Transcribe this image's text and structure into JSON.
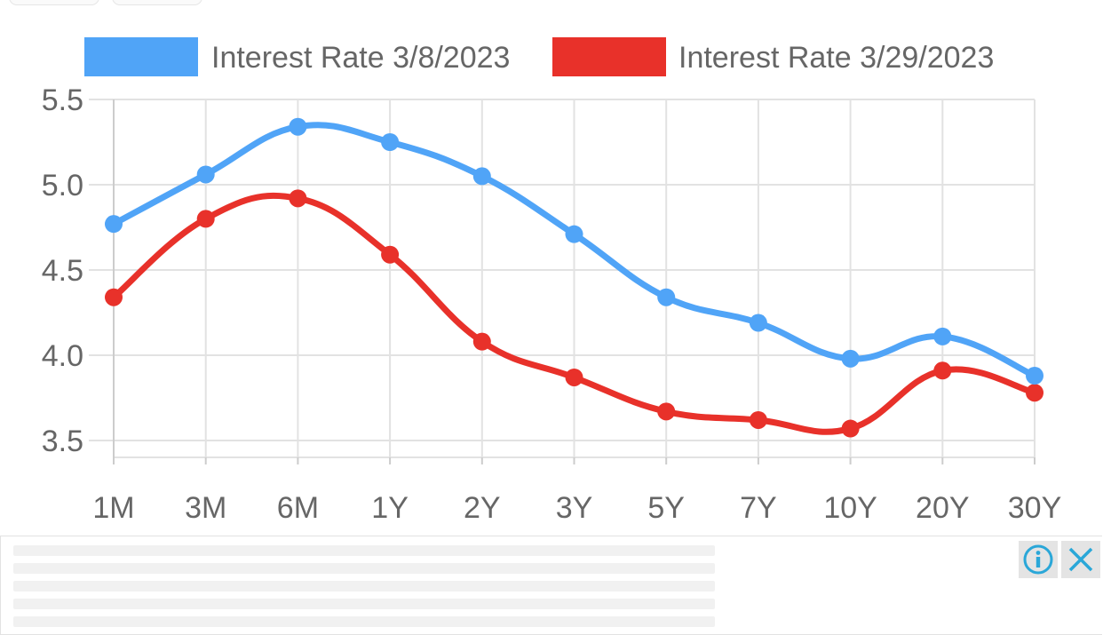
{
  "chart_data": {
    "type": "line",
    "categories": [
      "1M",
      "3M",
      "6M",
      "1Y",
      "2Y",
      "3Y",
      "5Y",
      "7Y",
      "10Y",
      "20Y",
      "30Y"
    ],
    "series": [
      {
        "name": "Interest Rate 3/8/2023",
        "color": "#50a4f7",
        "values": [
          4.77,
          5.06,
          5.34,
          5.25,
          5.05,
          4.71,
          4.34,
          4.19,
          3.98,
          4.11,
          3.88
        ]
      },
      {
        "name": "Interest Rate 3/29/2023",
        "color": "#e8312a",
        "values": [
          4.34,
          4.8,
          4.92,
          4.59,
          4.08,
          3.87,
          3.67,
          3.62,
          3.57,
          3.91,
          3.78
        ]
      }
    ],
    "yticks": [
      "5.5",
      "5.0",
      "4.5",
      "4.0",
      "3.5"
    ],
    "ylim": [
      3.4,
      5.5
    ],
    "grid": true,
    "legend_position": "top"
  },
  "ad": {
    "info_icon": "info-icon",
    "close_icon": "close-icon"
  }
}
